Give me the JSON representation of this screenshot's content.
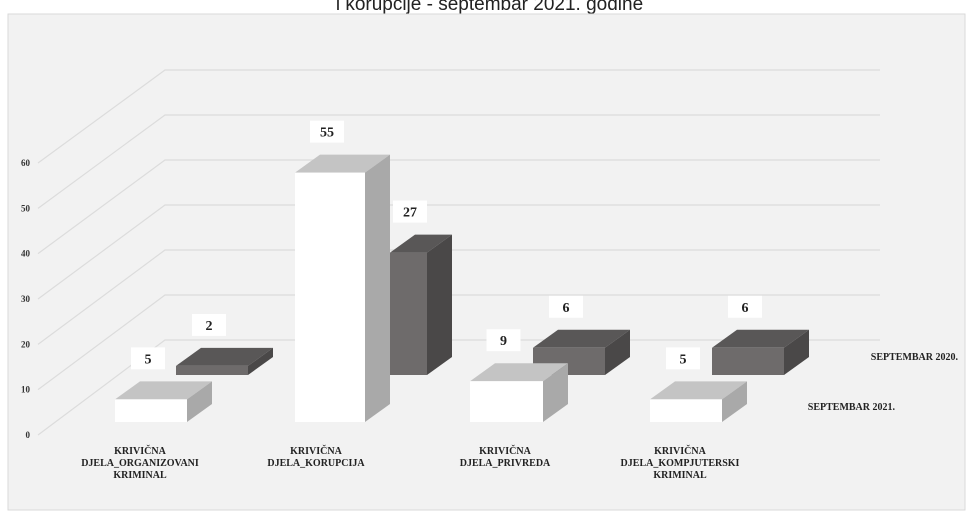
{
  "chart_data": {
    "type": "bar3d",
    "title": "i korupcije - septembar 2021. godine",
    "categories": [
      "KRIVIČNA DJELA_ORGANIZOVANI KRIMINAL",
      "KRIVIČNA DJELA_KORUPCIJA",
      "KRIVIČNA DJELA_PRIVREDA",
      "KRIVIČNA DJELA_KOMPJUTERSKI KRIMINAL"
    ],
    "series": [
      {
        "name": "SEPTEMBAR 2020.",
        "color": "#6e6b6b",
        "values": [
          2,
          27,
          6,
          6
        ]
      },
      {
        "name": "SEPTEMBAR 2021.",
        "color": "#ffffff",
        "values": [
          5,
          55,
          9,
          5
        ]
      }
    ],
    "ylim": [
      0,
      60
    ],
    "yticks": [
      0,
      10,
      20,
      30,
      40,
      50,
      60
    ],
    "grid": true
  }
}
